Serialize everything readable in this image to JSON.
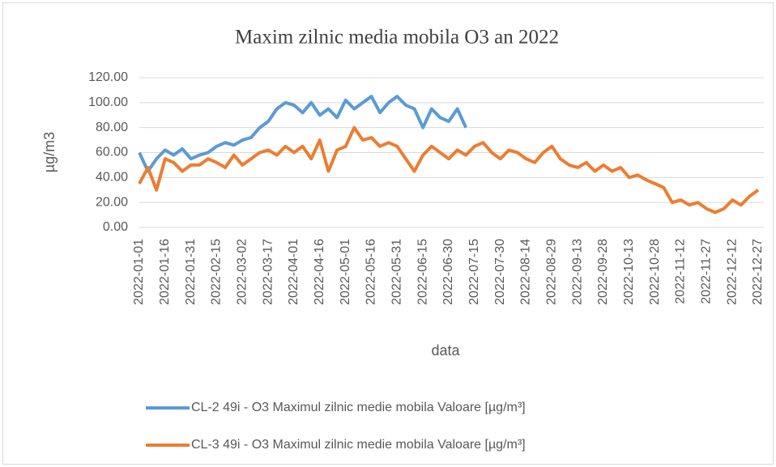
{
  "chart_data": {
    "type": "line",
    "title": "Maxim zilnic media mobila O3 an 2022",
    "y_label": "µg/m3",
    "x_label": "data",
    "categories": [
      "2022-01-01",
      null,
      null,
      "2022-01-16",
      null,
      null,
      "2022-01-31",
      null,
      null,
      "2022-02-15",
      null,
      null,
      "2022-03-02",
      null,
      null,
      "2022-03-17",
      null,
      null,
      "2022-04-01",
      null,
      null,
      "2022-04-16",
      null,
      null,
      "2022-05-01",
      null,
      null,
      "2022-05-16",
      null,
      null,
      "2022-05-31",
      null,
      null,
      "2022-06-15",
      null,
      null,
      "2022-06-30",
      null,
      null,
      "2022-07-15",
      null,
      null,
      "2022-07-30",
      null,
      null,
      "2022-08-14",
      null,
      null,
      "2022-08-29",
      null,
      null,
      "2022-09-13",
      null,
      null,
      "2022-09-28",
      null,
      null,
      "2022-10-13",
      null,
      null,
      "2022-10-28",
      null,
      null,
      "2022-11-12",
      null,
      null,
      "2022-11-27",
      null,
      null,
      "2022-12-12",
      null,
      null,
      "2022-12-27"
    ],
    "series": [
      {
        "name": "CL-2 49i - O3 Maximul zilnic medie mobila Valoare [µg/m³]",
        "color": "#5b9bd5",
        "values": [
          60,
          45,
          55,
          62,
          58,
          63,
          55,
          58,
          60,
          65,
          68,
          66,
          70,
          72,
          80,
          85,
          95,
          100,
          98,
          92,
          100,
          90,
          95,
          88,
          102,
          95,
          100,
          105,
          92,
          100,
          105,
          98,
          95,
          80,
          95,
          88,
          85,
          95,
          80,
          null,
          null,
          null,
          null,
          null,
          null,
          null,
          null,
          null,
          null,
          null,
          null,
          null,
          null,
          null,
          null,
          null,
          null,
          null,
          null,
          null,
          null,
          null,
          null,
          null,
          null,
          null,
          null,
          null,
          null,
          null,
          null,
          null,
          null
        ]
      },
      {
        "name": "CL-3 49i - O3 Maximul zilnic medie mobila Valoare [µg/m³]",
        "color": "#ed7d31",
        "values": [
          35,
          48,
          30,
          55,
          52,
          45,
          50,
          50,
          55,
          52,
          48,
          58,
          50,
          55,
          60,
          62,
          58,
          65,
          60,
          65,
          55,
          70,
          45,
          62,
          65,
          80,
          70,
          72,
          65,
          68,
          65,
          55,
          45,
          58,
          65,
          60,
          55,
          62,
          58,
          65,
          68,
          60,
          55,
          62,
          60,
          55,
          52,
          60,
          65,
          55,
          50,
          48,
          52,
          45,
          50,
          45,
          48,
          40,
          42,
          38,
          35,
          32,
          20,
          22,
          18,
          20,
          15,
          12,
          15,
          22,
          18,
          25,
          30
        ]
      }
    ],
    "ylim": [
      0,
      120
    ],
    "yticks": [
      {
        "value": 0,
        "label": "0.00"
      },
      {
        "value": 20,
        "label": "20.00"
      },
      {
        "value": 40,
        "label": "40.00"
      },
      {
        "value": 60,
        "label": "60.00"
      },
      {
        "value": 80,
        "label": "80.00"
      },
      {
        "value": 100,
        "label": "100.00"
      },
      {
        "value": 120,
        "label": "120.00"
      }
    ],
    "grid": true
  }
}
